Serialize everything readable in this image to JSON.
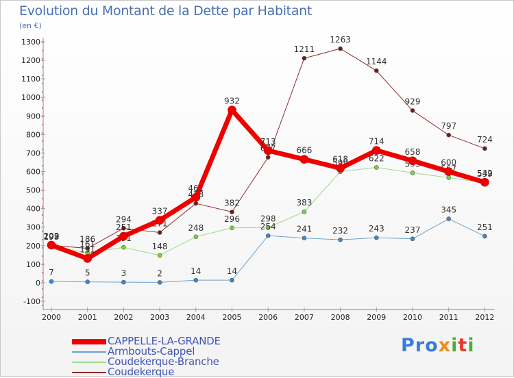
{
  "header": {
    "title": "Evolution du Montant de la Dette par Habitant",
    "unit": "(en €)"
  },
  "logo": {
    "text": "Proxiti"
  },
  "chart_data": {
    "type": "line",
    "title": "Evolution du Montant de la Dette par Habitant",
    "ylabel": "(en €)",
    "xlabel": "",
    "ylim": [
      -100,
      1300
    ],
    "y_ticks": [
      -100,
      0,
      100,
      200,
      300,
      400,
      500,
      600,
      700,
      800,
      900,
      1000,
      1100,
      1200,
      1300
    ],
    "grid": false,
    "legend": "bottom-left",
    "categories": [
      "2000",
      "2001",
      "2002",
      "2003",
      "2004",
      "2005",
      "2006",
      "2007",
      "2008",
      "2009",
      "2010",
      "2011",
      "2012"
    ],
    "series": [
      {
        "name": "Coudekerque",
        "color": "#8b2d2d",
        "dot": "#6e1c1c",
        "width": 1,
        "values": [
          202,
          186,
          294,
          271,
          428,
          382,
          677,
          1211,
          1263,
          1144,
          929,
          797,
          724
        ]
      },
      {
        "name": "Coudekerque-Branche",
        "color": "#a3d98a",
        "dot": "#7fd13b",
        "width": 1,
        "values": [
          199,
          161,
          191,
          148,
          248,
          296,
          298,
          383,
          599,
          622,
          593,
          567,
          539
        ]
      },
      {
        "name": "Armbouts-Cappel",
        "color": "#6aa0cf",
        "dot": "#3f86d0",
        "width": 1,
        "values": [
          7,
          5,
          3,
          2,
          14,
          14,
          254,
          241,
          232,
          243,
          237,
          345,
          251
        ]
      },
      {
        "name": "CAPPELLE-LA-GRANDE",
        "color": "#ee0000",
        "dot": "#ee0000",
        "width": 7,
        "values": [
          203,
          131,
          251,
          337,
          461,
          932,
          713,
          666,
          618,
          714,
          658,
          600,
          542
        ]
      }
    ]
  }
}
